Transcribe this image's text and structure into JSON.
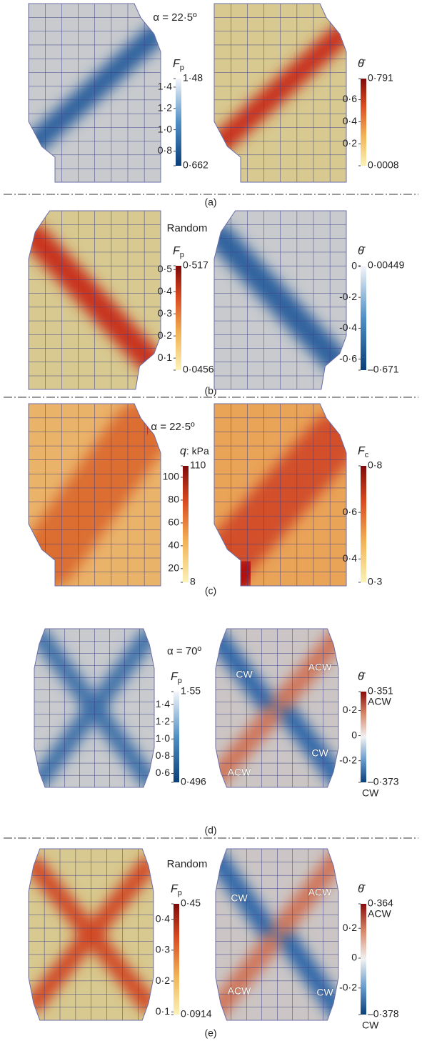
{
  "panels": [
    {
      "label": "(a)",
      "title": "α = 22·5º",
      "plots": [
        {
          "colorbar": {
            "label": {
              "symbol": "F",
              "sub": "p"
            },
            "max": {
              "value": 1.48,
              "label": "1·48"
            },
            "min": {
              "value": 0.662,
              "label": "0·662"
            },
            "ticks": [
              {
                "value": 1.4,
                "label": "1·4"
              },
              {
                "value": 1.2,
                "label": "1·2"
              },
              {
                "value": 1.0,
                "label": "1·0"
              },
              {
                "value": 0.8,
                "label": "0·8"
              }
            ]
          }
        },
        {
          "colorbar": {
            "label": {
              "symbol": "θ̄"
            },
            "max": {
              "value": 0.791,
              "label": "0·791"
            },
            "min": {
              "value": 0.0008,
              "label": "0·0008"
            },
            "ticks": [
              {
                "value": 0.6,
                "label": "0·6"
              },
              {
                "value": 0.4,
                "label": "0·4"
              },
              {
                "value": 0.2,
                "label": "0·2"
              }
            ]
          }
        }
      ]
    },
    {
      "label": "(b)",
      "title": "Random",
      "plots": [
        {
          "colorbar": {
            "label": {
              "symbol": "F",
              "sub": "p"
            },
            "max": {
              "value": 0.517,
              "label": "0·517"
            },
            "min": {
              "value": 0.0456,
              "label": "0·0456"
            },
            "ticks": [
              {
                "value": 0.5,
                "label": "0·5"
              },
              {
                "value": 0.4,
                "label": "0·4"
              },
              {
                "value": 0.3,
                "label": "0·3"
              },
              {
                "value": 0.2,
                "label": "0·2"
              },
              {
                "value": 0.1,
                "label": "0·1"
              }
            ]
          }
        },
        {
          "colorbar": {
            "label": {
              "symbol": "θ̄"
            },
            "max": {
              "value": 0.00449,
              "label": "0·00449"
            },
            "min": {
              "value": -0.671,
              "label": "–0·671"
            },
            "ticks": [
              0,
              {
                "value": -0.2,
                "label": "-0·2"
              },
              {
                "value": -0.4,
                "label": "-0·4"
              },
              {
                "value": -0.6,
                "label": "-0·6"
              }
            ]
          }
        }
      ]
    },
    {
      "label": "(c)",
      "title": "α = 22·5º",
      "plots": [
        {
          "colorbar": {
            "label": {
              "symbol": "q",
              "rest": ": kPa"
            },
            "max": 110,
            "min": 8,
            "ticks": [
              100,
              80,
              60,
              40,
              20
            ]
          }
        },
        {
          "colorbar": {
            "label": {
              "symbol": "F",
              "sub": "c"
            },
            "max": {
              "value": 0.8,
              "label": "0·8"
            },
            "min": {
              "value": 0.3,
              "label": "0·3"
            },
            "ticks": [
              {
                "value": 0.6,
                "label": "0·6"
              },
              {
                "value": 0.4,
                "label": "0·4"
              }
            ]
          }
        }
      ]
    },
    {
      "label": "(d)",
      "title": "α = 70º",
      "plots": [
        {
          "colorbar": {
            "label": {
              "symbol": "F",
              "sub": "p"
            },
            "max": {
              "value": 1.55,
              "label": "1·55"
            },
            "min": {
              "value": 0.496,
              "label": "0·496"
            },
            "ticks": [
              {
                "value": 1.4,
                "label": "1·4"
              },
              {
                "value": 1.2,
                "label": "1·2"
              },
              {
                "value": 1.0,
                "label": "1·0"
              },
              {
                "value": 0.8,
                "label": "0·8"
              },
              {
                "value": 0.6,
                "label": "0·6"
              }
            ]
          }
        },
        {
          "annotations": [
            "CW",
            "ACW",
            "CW",
            "ACW"
          ],
          "colorbar": {
            "label": {
              "symbol": "θ̄"
            },
            "max": {
              "value": 0.351,
              "label": "0·351"
            },
            "min": {
              "value": -0.373,
              "label": "–0·373"
            },
            "max_note": "ACW",
            "min_note": "CW",
            "ticks": [
              {
                "value": 0.2,
                "label": "0·2"
              },
              0,
              {
                "value": -0.2,
                "label": "-0·2"
              }
            ]
          }
        }
      ]
    },
    {
      "label": "(e)",
      "title": "Random",
      "plots": [
        {
          "colorbar": {
            "label": {
              "symbol": "F",
              "sub": "p"
            },
            "max": {
              "value": 0.45,
              "label": "0·45"
            },
            "min": {
              "value": 0.0914,
              "label": "0·0914"
            },
            "ticks": [
              {
                "value": 0.4,
                "label": "0·4"
              },
              {
                "value": 0.3,
                "label": "0·3"
              },
              {
                "value": 0.2,
                "label": "0·2"
              },
              {
                "value": 0.1,
                "label": "0·1"
              }
            ]
          }
        },
        {
          "annotations": [
            "CW",
            "ACW",
            "ACW",
            "CW"
          ],
          "colorbar": {
            "label": {
              "symbol": "θ̄"
            },
            "max": {
              "value": 0.364,
              "label": "0·364"
            },
            "min": {
              "value": -0.378,
              "label": "–0·378"
            },
            "max_note": "ACW",
            "min_note": "CW",
            "ticks": [
              {
                "value": 0.2,
                "label": "0·2"
              },
              0,
              {
                "value": -0.2,
                "label": "-0·2"
              }
            ]
          }
        }
      ]
    }
  ]
}
